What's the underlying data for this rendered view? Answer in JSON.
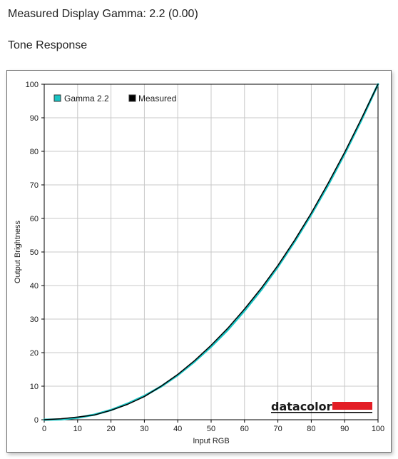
{
  "header": {
    "display_gamma": "Measured Display Gamma: 2.2 (0.00)",
    "section_title": "Tone Response"
  },
  "brand": {
    "name": "datacolor",
    "accent_color": "#e31e26"
  },
  "chart_data": {
    "type": "line",
    "xlabel": "Input RGB",
    "ylabel": "Output Brightness",
    "xlim": [
      0,
      100
    ],
    "ylim": [
      0,
      100
    ],
    "x_ticks": [
      "0",
      "10",
      "20",
      "30",
      "40",
      "50",
      "60",
      "70",
      "80",
      "90",
      "100"
    ],
    "y_ticks": [
      "0",
      "10",
      "20",
      "30",
      "40",
      "50",
      "60",
      "70",
      "80",
      "90",
      "100"
    ],
    "grid": true,
    "legend_position": "top-left",
    "series": [
      {
        "name": "Gamma 2.2",
        "color": "#19c3c3",
        "x": [
          0,
          5,
          10,
          15,
          20,
          25,
          30,
          35,
          40,
          45,
          50,
          55,
          60,
          65,
          70,
          75,
          80,
          85,
          90,
          95,
          100
        ],
        "y": [
          0,
          0.1,
          0.6,
          1.5,
          2.9,
          4.8,
          7.1,
          9.9,
          13.3,
          17.3,
          21.8,
          26.8,
          32.5,
          38.7,
          45.6,
          53.1,
          61.2,
          69.9,
          79.3,
          89.3,
          100
        ]
      },
      {
        "name": "Measured",
        "color": "#000000",
        "x": [
          0,
          5,
          10,
          15,
          20,
          25,
          30,
          35,
          40,
          45,
          50,
          55,
          60,
          65,
          70,
          75,
          80,
          85,
          90,
          95,
          100
        ],
        "y": [
          0,
          0.3,
          0.8,
          1.4,
          2.8,
          4.6,
          6.9,
          10.0,
          13.5,
          17.6,
          22.2,
          27.3,
          33.0,
          39.2,
          46.0,
          53.5,
          61.6,
          70.4,
          79.7,
          89.7,
          100
        ]
      }
    ]
  }
}
